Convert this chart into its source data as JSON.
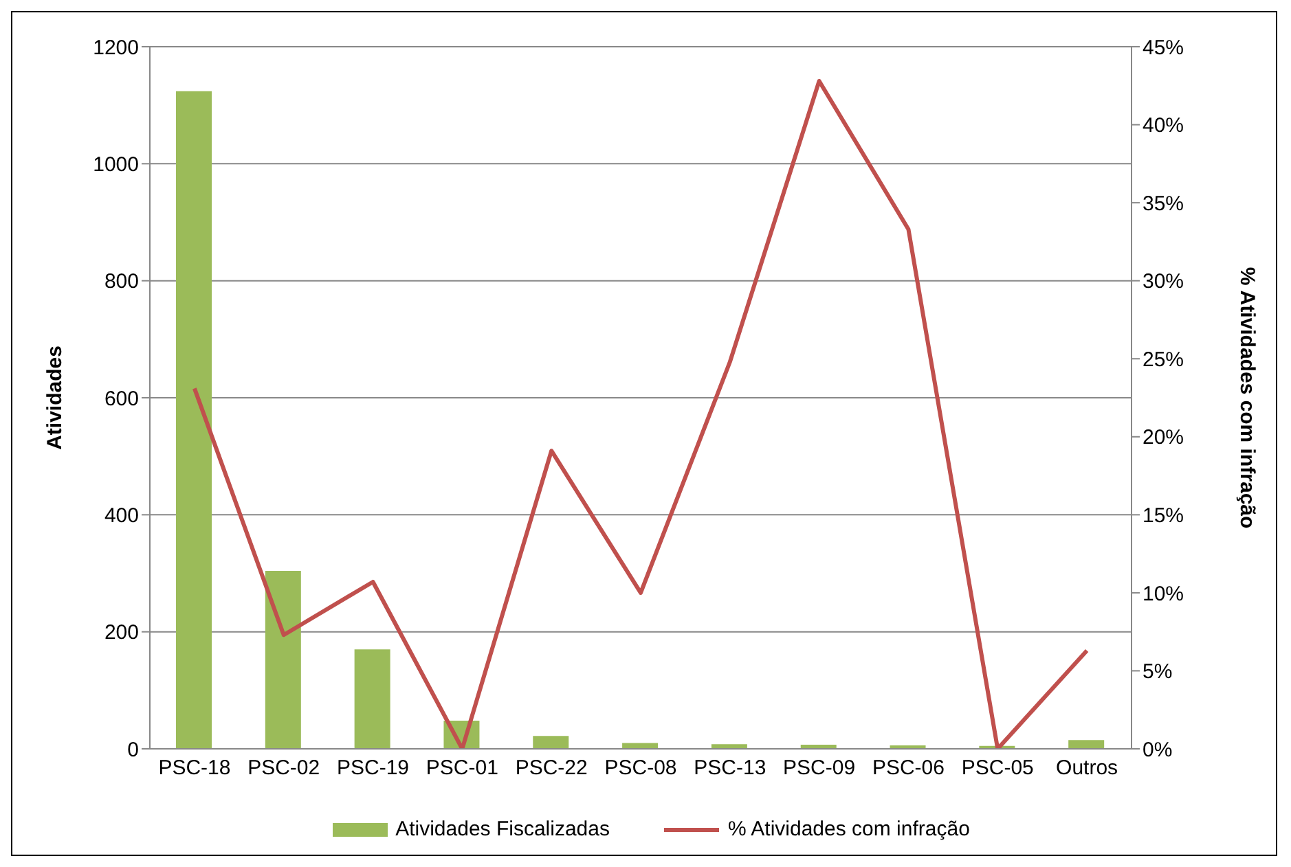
{
  "chart_data": {
    "type": "bar",
    "categories": [
      "PSC-18",
      "PSC-02",
      "PSC-19",
      "PSC-01",
      "PSC-22",
      "PSC-08",
      "PSC-13",
      "PSC-09",
      "PSC-06",
      "PSC-05",
      "Outros"
    ],
    "series": [
      {
        "name": "Atividades Fiscalizadas",
        "color": "#9bbb59",
        "values": [
          1124,
          304,
          170,
          48,
          22,
          10,
          8,
          7,
          6,
          5,
          15
        ]
      },
      {
        "name": "% Atividades com infração",
        "type": "line",
        "axis": "y2",
        "color": "#c0504d",
        "values": [
          23.1,
          7.3,
          10.7,
          0,
          19.1,
          10,
          24.8,
          42.8,
          33.3,
          0,
          6.3
        ]
      }
    ],
    "ylabel": "Atividades",
    "y2label": "% Atividades com infração",
    "ylim": [
      0,
      1200
    ],
    "yticks": [
      0,
      200,
      400,
      600,
      800,
      1000,
      1200
    ],
    "y2lim": [
      0,
      45
    ],
    "y2ticks": [
      {
        "value": 0,
        "label": "0%"
      },
      {
        "value": 5,
        "label": "5%"
      },
      {
        "value": 10,
        "label": "10%"
      },
      {
        "value": 15,
        "label": "15%"
      },
      {
        "value": 20,
        "label": "20%"
      },
      {
        "value": 25,
        "label": "25%"
      },
      {
        "value": 30,
        "label": "30%"
      },
      {
        "value": 35,
        "label": "35%"
      },
      {
        "value": 40,
        "label": "40%"
      },
      {
        "value": 45,
        "label": "45%"
      }
    ],
    "grid": "y",
    "legend": "bottom",
    "marker": "none"
  }
}
